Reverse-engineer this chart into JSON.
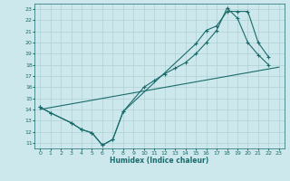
{
  "xlabel": "Humidex (Indice chaleur)",
  "ylabel": "",
  "bg_color": "#cde8ec",
  "grid_color": "#afd0d5",
  "line_color": "#1a6b6b",
  "xlim": [
    -0.5,
    23.5
  ],
  "ylim": [
    10.5,
    23.5
  ],
  "xticks": [
    0,
    1,
    2,
    3,
    4,
    5,
    6,
    7,
    8,
    9,
    10,
    11,
    12,
    13,
    14,
    15,
    16,
    17,
    18,
    19,
    20,
    21,
    22,
    23
  ],
  "yticks": [
    11,
    12,
    13,
    14,
    15,
    16,
    17,
    18,
    19,
    20,
    21,
    22,
    23
  ],
  "line1_x": [
    0,
    1,
    3,
    4,
    5,
    6,
    7,
    8,
    10,
    11,
    12,
    13,
    14,
    15,
    16,
    17,
    18,
    19,
    20,
    21,
    22
  ],
  "line1_y": [
    14.2,
    13.7,
    12.8,
    12.2,
    11.9,
    10.8,
    11.3,
    13.8,
    16.0,
    16.6,
    17.2,
    17.7,
    18.2,
    19.0,
    20.0,
    21.1,
    23.1,
    22.2,
    20.0,
    18.9,
    18.0
  ],
  "line2_x": [
    0,
    23
  ],
  "line2_y": [
    14.0,
    17.8
  ],
  "line3_x": [
    0,
    1,
    3,
    4,
    5,
    6,
    7,
    8,
    15,
    16,
    17,
    18,
    19,
    20,
    21,
    22
  ],
  "line3_y": [
    14.2,
    13.7,
    12.8,
    12.2,
    11.9,
    10.8,
    11.3,
    13.8,
    19.9,
    21.1,
    21.5,
    22.8,
    22.8,
    22.8,
    20.0,
    18.7
  ]
}
